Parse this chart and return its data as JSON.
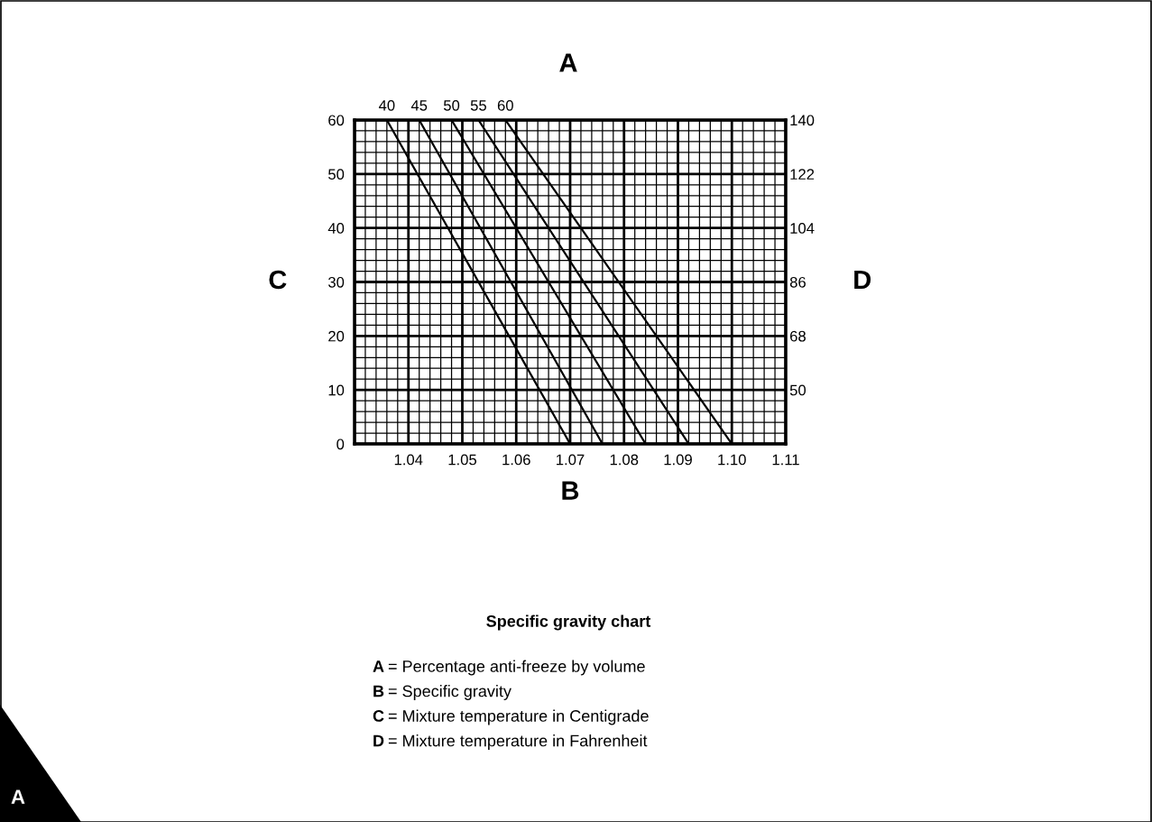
{
  "chart_data": {
    "type": "line",
    "title": "Specific gravity chart",
    "xlabel": "B",
    "ylabel": "C",
    "y2label": "D",
    "xlim": [
      1.03,
      1.11
    ],
    "xticks": [
      1.04,
      1.05,
      1.06,
      1.07,
      1.08,
      1.09,
      {
        "value": 1.1,
        "label": "1.10"
      },
      1.11
    ],
    "ylim": [
      0,
      60
    ],
    "yticks": [
      0,
      10,
      20,
      30,
      40,
      50,
      60
    ],
    "y2lim": [
      32,
      140
    ],
    "y2ticks": [
      50,
      68,
      86,
      104,
      122,
      140
    ],
    "grid": true,
    "marker": "none",
    "line_style": "solid",
    "series": [
      {
        "name": "40",
        "color": "#000000",
        "x": [
          1.036,
          1.07
        ],
        "values": [
          60,
          0
        ]
      },
      {
        "name": "45",
        "color": "#000000",
        "x": [
          1.042,
          1.076
        ],
        "values": [
          60,
          0
        ]
      },
      {
        "name": "50",
        "color": "#000000",
        "x": [
          1.048,
          1.084
        ],
        "values": [
          60,
          0
        ]
      },
      {
        "name": "55",
        "color": "#000000",
        "x": [
          1.053,
          1.092
        ],
        "values": [
          60,
          0
        ]
      },
      {
        "name": "60",
        "color": "#000000",
        "x": [
          1.058,
          1.1
        ],
        "values": [
          60,
          0
        ]
      }
    ],
    "annotations": [
      "A",
      "A = Percentage anti-freeze by volume",
      "B = Specific gravity",
      "C = Mixture temperature in Centigrade",
      "D = Mixture temperature in Fahrenheit",
      "A"
    ]
  }
}
